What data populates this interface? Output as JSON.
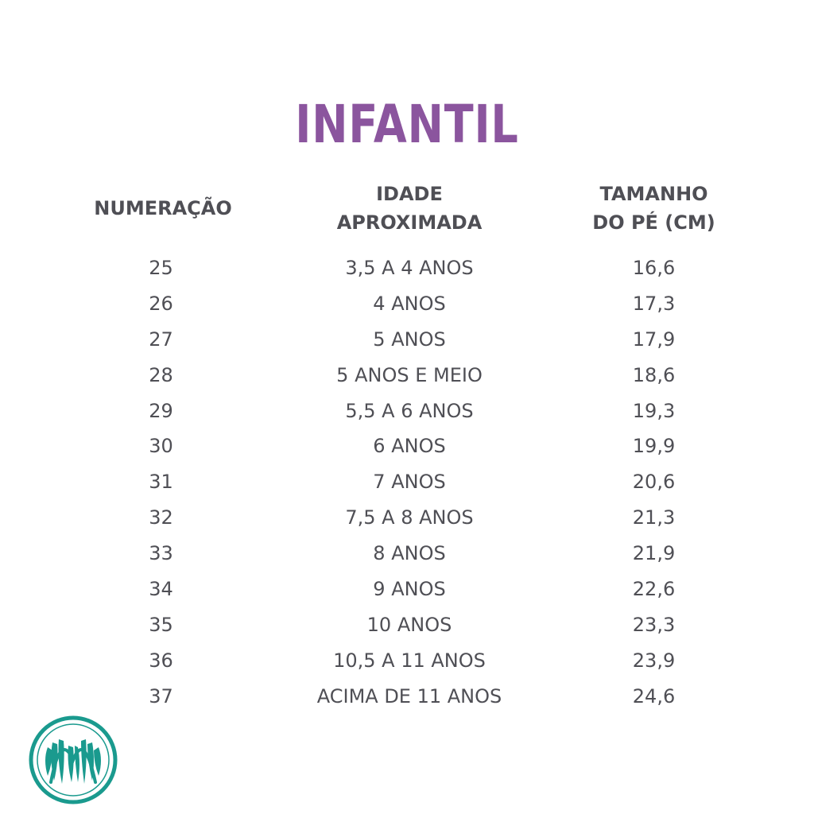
{
  "title": "INFANTIL",
  "headers": {
    "numeracao": "NUMERAÇÃO",
    "idade_line1": "IDADE",
    "idade_line2": "APROXIMADA",
    "tamanho_line1": "TAMANHO",
    "tamanho_line2": "DO PÉ (CM)"
  },
  "rows": [
    {
      "num": "25",
      "age": "3,5 A 4 ANOS",
      "size": "16,6"
    },
    {
      "num": "26",
      "age": "4 ANOS",
      "size": "17,3"
    },
    {
      "num": "27",
      "age": "5 ANOS",
      "size": "17,9"
    },
    {
      "num": "28",
      "age": "5 ANOS E MEIO",
      "size": "18,6"
    },
    {
      "num": "29",
      "age": "5,5 A 6 ANOS",
      "size": "19,3"
    },
    {
      "num": "30",
      "age": "6 ANOS",
      "size": "19,9"
    },
    {
      "num": "31",
      "age": "7 ANOS",
      "size": "20,6"
    },
    {
      "num": "32",
      "age": "7,5 A 8 ANOS",
      "size": "21,3"
    },
    {
      "num": "33",
      "age": "8 ANOS",
      "size": "21,9"
    },
    {
      "num": "34",
      "age": "9 ANOS",
      "size": "22,6"
    },
    {
      "num": "35",
      "age": "10 ANOS",
      "size": "23,3"
    },
    {
      "num": "36",
      "age": "10,5 A 11 ANOS",
      "size": "23,9"
    },
    {
      "num": "37",
      "age": "ACIMA DE 11 ANOS",
      "size": "24,6"
    }
  ],
  "logo": {
    "icon": "brand-logo-m-icon",
    "letter": "M",
    "color": "#1a9a8e"
  },
  "colors": {
    "title": "#8b559e",
    "text": "#4f4f55"
  }
}
